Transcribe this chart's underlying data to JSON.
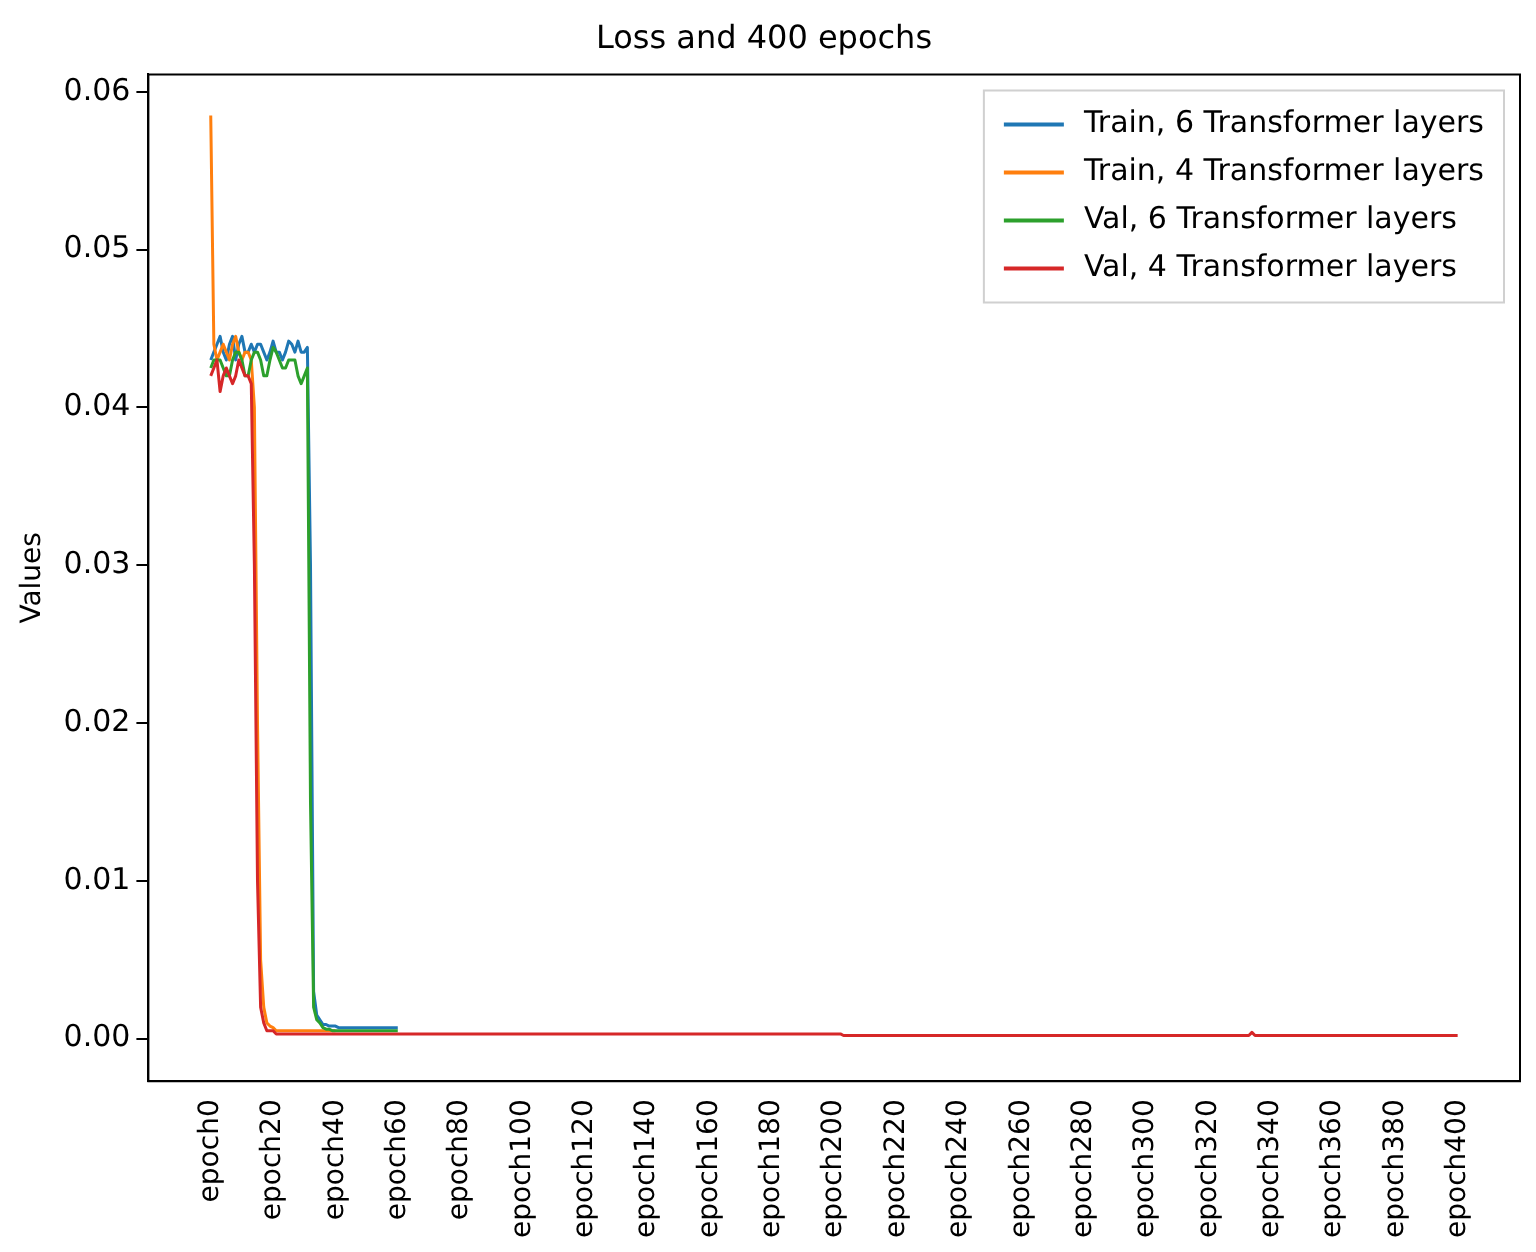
{
  "chart_data": {
    "type": "line",
    "title": "Loss and 400 epochs",
    "ylabel": "Values",
    "categories": [
      "epoch0",
      null,
      null,
      null,
      null,
      null,
      null,
      null,
      null,
      null,
      null,
      null,
      null,
      null,
      null,
      null,
      null,
      null,
      null,
      null,
      "epoch20",
      null,
      null,
      null,
      null,
      null,
      null,
      null,
      null,
      null,
      null,
      null,
      null,
      null,
      null,
      null,
      null,
      null,
      null,
      null,
      "epoch40",
      null,
      null,
      null,
      null,
      null,
      null,
      null,
      null,
      null,
      null,
      null,
      null,
      null,
      null,
      null,
      null,
      null,
      null,
      null,
      "epoch60",
      null,
      null,
      null,
      null,
      null,
      null,
      null,
      null,
      null,
      null,
      null,
      null,
      null,
      null,
      null,
      null,
      null,
      null,
      null,
      "epoch80",
      null,
      null,
      null,
      null,
      null,
      null,
      null,
      null,
      null,
      null,
      null,
      null,
      null,
      null,
      null,
      null,
      null,
      null,
      null,
      "epoch100",
      null,
      null,
      null,
      null,
      null,
      null,
      null,
      null,
      null,
      null,
      null,
      null,
      null,
      null,
      null,
      null,
      null,
      null,
      null,
      "epoch120",
      null,
      null,
      null,
      null,
      null,
      null,
      null,
      null,
      null,
      null,
      null,
      null,
      null,
      null,
      null,
      null,
      null,
      null,
      null,
      "epoch140",
      null,
      null,
      null,
      null,
      null,
      null,
      null,
      null,
      null,
      null,
      null,
      null,
      null,
      null,
      null,
      null,
      null,
      null,
      null,
      "epoch160",
      null,
      null,
      null,
      null,
      null,
      null,
      null,
      null,
      null,
      null,
      null,
      null,
      null,
      null,
      null,
      null,
      null,
      null,
      null,
      "epoch180",
      null,
      null,
      null,
      null,
      null,
      null,
      null,
      null,
      null,
      null,
      null,
      null,
      null,
      null,
      null,
      null,
      null,
      null,
      null,
      "epoch200",
      null,
      null,
      null,
      null,
      null,
      null,
      null,
      null,
      null,
      null,
      null,
      null,
      null,
      null,
      null,
      null,
      null,
      null,
      null,
      "epoch220",
      null,
      null,
      null,
      null,
      null,
      null,
      null,
      null,
      null,
      null,
      null,
      null,
      null,
      null,
      null,
      null,
      null,
      null,
      null,
      "epoch240",
      null,
      null,
      null,
      null,
      null,
      null,
      null,
      null,
      null,
      null,
      null,
      null,
      null,
      null,
      null,
      null,
      null,
      null,
      null,
      "epoch260",
      null,
      null,
      null,
      null,
      null,
      null,
      null,
      null,
      null,
      null,
      null,
      null,
      null,
      null,
      null,
      null,
      null,
      null,
      null,
      "epoch280",
      null,
      null,
      null,
      null,
      null,
      null,
      null,
      null,
      null,
      null,
      null,
      null,
      null,
      null,
      null,
      null,
      null,
      null,
      null,
      "epoch300",
      null,
      null,
      null,
      null,
      null,
      null,
      null,
      null,
      null,
      null,
      null,
      null,
      null,
      null,
      null,
      null,
      null,
      null,
      null,
      "epoch320",
      null,
      null,
      null,
      null,
      null,
      null,
      null,
      null,
      null,
      null,
      null,
      null,
      null,
      null,
      null,
      null,
      null,
      null,
      null,
      "epoch340",
      null,
      null,
      null,
      null,
      null,
      null,
      null,
      null,
      null,
      null,
      null,
      null,
      null,
      null,
      null,
      null,
      null,
      null,
      null,
      "epoch360",
      null,
      null,
      null,
      null,
      null,
      null,
      null,
      null,
      null,
      null,
      null,
      null,
      null,
      null,
      null,
      null,
      null,
      null,
      null,
      "epoch380",
      null,
      null,
      null,
      null,
      null,
      null,
      null,
      null,
      null,
      null,
      null,
      null,
      null,
      null,
      null,
      null,
      null,
      null,
      null,
      "epoch400"
    ],
    "ylim": [
      -0.0027,
      0.0611
    ],
    "yticks": [
      {
        "value": 0,
        "label": "0.00"
      },
      {
        "value": 0.01,
        "label": "0.01"
      },
      {
        "value": 0.02,
        "label": "0.02"
      },
      {
        "value": 0.03,
        "label": "0.03"
      },
      {
        "value": 0.04,
        "label": "0.04"
      },
      {
        "value": 0.05,
        "label": "0.05"
      },
      {
        "value": 0.06,
        "label": "0.06"
      }
    ],
    "grid": false,
    "legend": "top right",
    "marker": "none",
    "line_style": "solid",
    "series": [
      {
        "name": "Train, 6 Transformer layers",
        "color": "#1f77b4",
        "values": [
          0.043,
          0.0435,
          0.044,
          0.0445,
          0.0435,
          0.043,
          0.044,
          0.0445,
          0.043,
          0.044,
          0.0445,
          0.0435,
          0.0435,
          0.044,
          0.0435,
          0.044,
          0.044,
          0.0435,
          0.043,
          0.0435,
          0.0442,
          0.0435,
          0.0435,
          0.043,
          0.0435,
          0.0442,
          0.044,
          0.0435,
          0.0442,
          0.0435,
          0.0435,
          0.0438,
          0.03,
          0.003,
          0.0015,
          0.0012,
          0.0009,
          0.0009,
          0.0008,
          0.0008,
          0.0008,
          0.0007,
          0.0007,
          0.0007,
          0.0007,
          0.0007,
          0.0007,
          0.0007,
          0.0007,
          0.0007,
          0.0007,
          0.0007,
          0.0007,
          0.0007,
          0.0007,
          0.0007,
          0.0007,
          0.0007,
          0.0007,
          0.0007,
          0.0007,
          null,
          null,
          null,
          null,
          null,
          null,
          null,
          null,
          null,
          null,
          null,
          null,
          null,
          null,
          null,
          null,
          null,
          null,
          null,
          null,
          null,
          null,
          null,
          null,
          null,
          null,
          null,
          null,
          null,
          null,
          null,
          null,
          null,
          null,
          null,
          null,
          null,
          null,
          null,
          null,
          null,
          null,
          null,
          null,
          null,
          null,
          null,
          null,
          null,
          null,
          null,
          null,
          null,
          null,
          null,
          null,
          null,
          null,
          null,
          null,
          null,
          null,
          null,
          null,
          null,
          null,
          null,
          null,
          null,
          null,
          null,
          null,
          null,
          null,
          null,
          null,
          null,
          null,
          null,
          null,
          null,
          null,
          null,
          null,
          null,
          null,
          null,
          null,
          null,
          null,
          null,
          null,
          null,
          null,
          null,
          null,
          null,
          null,
          null,
          null,
          null,
          null,
          null,
          null,
          null,
          null,
          null,
          null,
          null,
          null,
          null,
          null,
          null,
          null,
          null,
          null,
          null,
          null,
          null,
          null,
          null,
          null,
          null,
          null,
          null,
          null,
          null,
          null,
          null,
          null,
          null,
          null,
          null,
          null,
          null,
          null,
          null,
          null,
          null,
          null,
          null,
          null,
          null,
          null,
          null,
          null,
          null,
          null,
          null,
          null,
          null,
          null,
          null,
          null,
          null,
          null,
          null,
          null,
          null,
          null,
          null,
          null,
          null,
          null,
          null,
          null,
          null,
          null,
          null,
          null,
          null,
          null,
          null,
          null,
          null,
          null,
          null,
          null,
          null,
          null,
          null,
          null,
          null,
          null,
          null,
          null,
          null,
          null,
          null,
          null,
          null,
          null,
          null,
          null,
          null,
          null,
          null,
          null,
          null,
          null,
          null,
          null,
          null,
          null,
          null,
          null,
          null,
          null,
          null,
          null,
          null,
          null,
          null,
          null,
          null,
          null,
          null,
          null,
          null,
          null,
          null,
          null,
          null,
          null,
          null,
          null,
          null,
          null,
          null,
          null,
          null,
          null,
          null,
          null,
          null,
          null,
          null,
          null,
          null,
          null,
          null,
          null,
          null,
          null,
          null,
          null,
          null,
          null,
          null,
          null,
          null,
          null,
          null,
          null,
          null,
          null,
          null,
          null,
          null,
          null,
          null,
          null,
          null,
          null,
          null,
          null,
          null,
          null,
          null,
          null,
          null,
          null,
          null,
          null,
          null,
          null,
          null,
          null,
          null,
          null,
          null,
          null,
          null,
          null,
          null,
          null,
          null,
          null,
          null,
          null,
          null,
          null,
          null,
          null,
          null,
          null,
          null,
          null,
          null,
          null,
          null,
          null,
          null,
          null,
          null,
          null,
          null,
          null,
          null,
          null,
          null,
          null,
          null,
          null,
          null,
          null,
          null,
          null,
          null,
          null,
          null,
          null,
          null,
          null,
          null,
          null,
          null,
          null,
          null,
          null,
          null,
          null,
          null,
          null,
          null,
          null,
          null,
          null,
          null,
          null
        ]
      },
      {
        "name": "Train, 4 Transformer layers",
        "color": "#ff7f0e",
        "values": [
          0.0585,
          0.044,
          0.043,
          0.0435,
          0.044,
          0.0435,
          0.043,
          0.044,
          0.0445,
          0.0435,
          0.043,
          0.0435,
          0.0435,
          0.043,
          0.04,
          0.02,
          0.005,
          0.002,
          0.001,
          0.0008,
          0.0007,
          0.0005,
          0.0005,
          0.0005,
          0.0005,
          0.0005,
          0.0005,
          0.0005,
          0.0005,
          0.0005,
          0.0005,
          0.0005,
          0.0005,
          0.0005,
          0.0005,
          0.0005,
          0.0005,
          0.0005,
          0.0005,
          0.0005,
          0.0005,
          null,
          null,
          null,
          null,
          null,
          null,
          null,
          null,
          null,
          null,
          null,
          null,
          null,
          null,
          null,
          null,
          null,
          null,
          null,
          null,
          null,
          null,
          null,
          null,
          null,
          null,
          null,
          null,
          null,
          null,
          null,
          null,
          null,
          null,
          null,
          null,
          null,
          null,
          null,
          null,
          null,
          null,
          null,
          null,
          null,
          null,
          null,
          null,
          null,
          null,
          null,
          null,
          null,
          null,
          null,
          null,
          null,
          null,
          null,
          null,
          null,
          null,
          null,
          null,
          null,
          null,
          null,
          null,
          null,
          null,
          null,
          null,
          null,
          null,
          null,
          null,
          null,
          null,
          null,
          null,
          null,
          null,
          null,
          null,
          null,
          null,
          null,
          null,
          null,
          null,
          null,
          null,
          null,
          null,
          null,
          null,
          null,
          null,
          null,
          null,
          null,
          null,
          null,
          null,
          null,
          null,
          null,
          null,
          null,
          null,
          null,
          null,
          null,
          null,
          null,
          null,
          null,
          null,
          null,
          null,
          null,
          null,
          null,
          null,
          null,
          null,
          null,
          null,
          null,
          null,
          null,
          null,
          null,
          null,
          null,
          null,
          null,
          null,
          null,
          null,
          null,
          null,
          null,
          null,
          null,
          null,
          null,
          null,
          null,
          null,
          null,
          null,
          null,
          null,
          null,
          null,
          null,
          null,
          null,
          null,
          null,
          null,
          null,
          null,
          null,
          null,
          null,
          null,
          null,
          null,
          null,
          null,
          null,
          null,
          null,
          null,
          null,
          null,
          null,
          null,
          null,
          null,
          null,
          null,
          null,
          null,
          null,
          null,
          null,
          null,
          null,
          null,
          null,
          null,
          null,
          null,
          null,
          null,
          null,
          null,
          null,
          null,
          null,
          null,
          null,
          null,
          null,
          null,
          null,
          null,
          null,
          null,
          null,
          null,
          null,
          null,
          null,
          null,
          null,
          null,
          null,
          null,
          null,
          null,
          null,
          null,
          null,
          null,
          null,
          null,
          null,
          null,
          null,
          null,
          null,
          null,
          null,
          null,
          null,
          null,
          null,
          null,
          null,
          null,
          null,
          null,
          null,
          null,
          null,
          null,
          null,
          null,
          null,
          null,
          null,
          null,
          null,
          null,
          null,
          null,
          null,
          null,
          null,
          null,
          null,
          null,
          null,
          null,
          null,
          null,
          null,
          null,
          null,
          null,
          null,
          null,
          null,
          null,
          null,
          null,
          null,
          null,
          null,
          null,
          null,
          null,
          null,
          null,
          null,
          null,
          null,
          null,
          null,
          null,
          null,
          null,
          null,
          null,
          null,
          null,
          null,
          null,
          null,
          null,
          null,
          null,
          null,
          null,
          null,
          null,
          null,
          null,
          null,
          null,
          null,
          null,
          null,
          null,
          null,
          null,
          null,
          null,
          null,
          null,
          null,
          null,
          null,
          null,
          null,
          null,
          null,
          null,
          null,
          null,
          null,
          null,
          null,
          null,
          null,
          null,
          null,
          null,
          null,
          null,
          null,
          null,
          null,
          null,
          null,
          null,
          null,
          null,
          null,
          null,
          null,
          null,
          null,
          null,
          null,
          null
        ]
      },
      {
        "name": "Val, 6 Transformer layers",
        "color": "#2ca02c",
        "values": [
          0.0425,
          0.043,
          0.043,
          0.043,
          0.0425,
          0.042,
          0.042,
          0.043,
          0.0435,
          0.0435,
          0.043,
          0.042,
          0.042,
          0.043,
          0.0435,
          0.0435,
          0.043,
          0.042,
          0.042,
          0.043,
          0.0438,
          0.0435,
          0.043,
          0.0425,
          0.0425,
          0.043,
          0.043,
          0.043,
          0.042,
          0.0415,
          0.042,
          0.0425,
          0.015,
          0.002,
          0.0012,
          0.001,
          0.0007,
          0.0006,
          0.0006,
          0.0005,
          0.0005,
          0.0005,
          0.0005,
          0.0005,
          0.0005,
          0.0005,
          0.0005,
          0.0005,
          0.0005,
          0.0005,
          0.0005,
          0.0005,
          0.0005,
          0.0005,
          0.0005,
          0.0005,
          0.0005,
          0.0005,
          0.0005,
          0.0005,
          0.0005,
          null,
          null,
          null,
          null,
          null,
          null,
          null,
          null,
          null,
          null,
          null,
          null,
          null,
          null,
          null,
          null,
          null,
          null,
          null,
          null,
          null,
          null,
          null,
          null,
          null,
          null,
          null,
          null,
          null,
          null,
          null,
          null,
          null,
          null,
          null,
          null,
          null,
          null,
          null,
          null,
          null,
          null,
          null,
          null,
          null,
          null,
          null,
          null,
          null,
          null,
          null,
          null,
          null,
          null,
          null,
          null,
          null,
          null,
          null,
          null,
          null,
          null,
          null,
          null,
          null,
          null,
          null,
          null,
          null,
          null,
          null,
          null,
          null,
          null,
          null,
          null,
          null,
          null,
          null,
          null,
          null,
          null,
          null,
          null,
          null,
          null,
          null,
          null,
          null,
          null,
          null,
          null,
          null,
          null,
          null,
          null,
          null,
          null,
          null,
          null,
          null,
          null,
          null,
          null,
          null,
          null,
          null,
          null,
          null,
          null,
          null,
          null,
          null,
          null,
          null,
          null,
          null,
          null,
          null,
          null,
          null,
          null,
          null,
          null,
          null,
          null,
          null,
          null,
          null,
          null,
          null,
          null,
          null,
          null,
          null,
          null,
          null,
          null,
          null,
          null,
          null,
          null,
          null,
          null,
          null,
          null,
          null,
          null,
          null,
          null,
          null,
          null,
          null,
          null,
          null,
          null,
          null,
          null,
          null,
          null,
          null,
          null,
          null,
          null,
          null,
          null,
          null,
          null,
          null,
          null,
          null,
          null,
          null,
          null,
          null,
          null,
          null,
          null,
          null,
          null,
          null,
          null,
          null,
          null,
          null,
          null,
          null,
          null,
          null,
          null,
          null,
          null,
          null,
          null,
          null,
          null,
          null,
          null,
          null,
          null,
          null,
          null,
          null,
          null,
          null,
          null,
          null,
          null,
          null,
          null,
          null,
          null,
          null,
          null,
          null,
          null,
          null,
          null,
          null,
          null,
          null,
          null,
          null,
          null,
          null,
          null,
          null,
          null,
          null,
          null,
          null,
          null,
          null,
          null,
          null,
          null,
          null,
          null,
          null,
          null,
          null,
          null,
          null,
          null,
          null,
          null,
          null,
          null,
          null,
          null,
          null,
          null,
          null,
          null,
          null,
          null,
          null,
          null,
          null,
          null,
          null,
          null,
          null,
          null,
          null,
          null,
          null,
          null,
          null,
          null,
          null,
          null,
          null,
          null,
          null,
          null,
          null,
          null,
          null,
          null,
          null,
          null,
          null,
          null,
          null,
          null,
          null,
          null,
          null,
          null,
          null,
          null,
          null,
          null,
          null,
          null,
          null,
          null,
          null,
          null,
          null,
          null,
          null,
          null,
          null,
          null,
          null,
          null,
          null,
          null,
          null,
          null,
          null,
          null,
          null,
          null,
          null,
          null,
          null,
          null,
          null,
          null,
          null,
          null,
          null,
          null,
          null,
          null,
          null,
          null,
          null,
          null,
          null,
          null,
          null,
          null,
          null,
          null,
          null,
          null
        ]
      },
      {
        "name": "Val, 4 Transformer layers",
        "color": "#d62728",
        "values": [
          0.042,
          0.0425,
          0.043,
          0.041,
          0.042,
          0.0425,
          0.042,
          0.0415,
          0.042,
          0.043,
          0.0425,
          0.042,
          0.042,
          0.0415,
          0.03,
          0.01,
          0.002,
          0.001,
          0.0005,
          0.0005,
          0.0005,
          0.0003,
          0.0003,
          0.0003,
          0.0003,
          0.0003,
          0.0003,
          0.0003,
          0.0003,
          0.0003,
          0.0003,
          0.0003,
          0.0003,
          0.0003,
          0.0003,
          0.0003,
          0.0003,
          0.0003,
          0.0003,
          0.0003,
          0.0003,
          0.0003,
          0.0003,
          0.0003,
          0.0003,
          0.0003,
          0.0003,
          0.0003,
          0.0003,
          0.0003,
          0.0003,
          0.0003,
          0.0003,
          0.0003,
          0.0003,
          0.0003,
          0.0003,
          0.0003,
          0.0003,
          0.0003,
          0.0003,
          0.0003,
          0.0003,
          0.0003,
          0.0003,
          0.0003,
          0.0003,
          0.0003,
          0.0003,
          0.0003,
          0.0003,
          0.0003,
          0.0003,
          0.0003,
          0.0003,
          0.0003,
          0.0003,
          0.0003,
          0.0003,
          0.0003,
          0.0003,
          0.0003,
          0.0003,
          0.0003,
          0.0003,
          0.0003,
          0.0003,
          0.0003,
          0.0003,
          0.0003,
          0.0003,
          0.0003,
          0.0003,
          0.0003,
          0.0003,
          0.0003,
          0.0003,
          0.0003,
          0.0003,
          0.0003,
          0.0003,
          0.0003,
          0.0003,
          0.0003,
          0.0003,
          0.0003,
          0.0003,
          0.0003,
          0.0003,
          0.0003,
          0.0003,
          0.0003,
          0.0003,
          0.0003,
          0.0003,
          0.0003,
          0.0003,
          0.0003,
          0.0003,
          0.0003,
          0.0003,
          0.0003,
          0.0003,
          0.0003,
          0.0003,
          0.0003,
          0.0003,
          0.0003,
          0.0003,
          0.0003,
          0.0003,
          0.0003,
          0.0003,
          0.0003,
          0.0003,
          0.0003,
          0.0003,
          0.0003,
          0.0003,
          0.0003,
          0.0003,
          0.0003,
          0.0003,
          0.0003,
          0.0003,
          0.0003,
          0.0003,
          0.0003,
          0.0003,
          0.0003,
          0.0003,
          0.0003,
          0.0003,
          0.0003,
          0.0003,
          0.0003,
          0.0003,
          0.0003,
          0.0003,
          0.0003,
          0.0003,
          0.0003,
          0.0003,
          0.0003,
          0.0003,
          0.0003,
          0.0003,
          0.0003,
          0.0003,
          0.0003,
          0.0003,
          0.0003,
          0.0003,
          0.0003,
          0.0003,
          0.0003,
          0.0003,
          0.0003,
          0.0003,
          0.0003,
          0.0003,
          0.0003,
          0.0003,
          0.0003,
          0.0003,
          0.0003,
          0.0003,
          0.0003,
          0.0003,
          0.0003,
          0.0003,
          0.0003,
          0.0003,
          0.0003,
          0.0003,
          0.0003,
          0.0003,
          0.0003,
          0.0003,
          0.0003,
          0.0003,
          0.0003,
          0.0003,
          0.0002,
          0.0002,
          0.0002,
          0.0002,
          0.0002,
          0.0002,
          0.0002,
          0.0002,
          0.0002,
          0.0002,
          0.0002,
          0.0002,
          0.0002,
          0.0002,
          0.0002,
          0.0002,
          0.0002,
          0.0002,
          0.0002,
          0.0002,
          0.0002,
          0.0002,
          0.0002,
          0.0002,
          0.0002,
          0.0002,
          0.0002,
          0.0002,
          0.0002,
          0.0002,
          0.0002,
          0.0002,
          0.0002,
          0.0002,
          0.0002,
          0.0002,
          0.0002,
          0.0002,
          0.0002,
          0.0002,
          0.0002,
          0.0002,
          0.0002,
          0.0002,
          0.0002,
          0.0002,
          0.0002,
          0.0002,
          0.0002,
          0.0002,
          0.0002,
          0.0002,
          0.0002,
          0.0002,
          0.0002,
          0.0002,
          0.0002,
          0.0002,
          0.0002,
          0.0002,
          0.0002,
          0.0002,
          0.0002,
          0.0002,
          0.0002,
          0.0002,
          0.0002,
          0.0002,
          0.0002,
          0.0002,
          0.0002,
          0.0002,
          0.0002,
          0.0002,
          0.0002,
          0.0002,
          0.0002,
          0.0002,
          0.0002,
          0.0002,
          0.0002,
          0.0002,
          0.0002,
          0.0002,
          0.0002,
          0.0002,
          0.0002,
          0.0002,
          0.0002,
          0.0002,
          0.0002,
          0.0002,
          0.0002,
          0.0002,
          0.0002,
          0.0002,
          0.0002,
          0.0002,
          0.0002,
          0.0002,
          0.0002,
          0.0002,
          0.0002,
          0.0002,
          0.0002,
          0.0002,
          0.0002,
          0.0002,
          0.0002,
          0.0002,
          0.0002,
          0.0002,
          0.0002,
          0.0002,
          0.0002,
          0.0002,
          0.0002,
          0.0002,
          0.0002,
          0.0002,
          0.0002,
          0.0002,
          0.0002,
          0.0002,
          0.0002,
          0.0002,
          0.0002,
          0.0002,
          0.0002,
          0.0002,
          0.0002,
          0.0004,
          0.0002,
          0.0002,
          0.0002,
          0.0002,
          0.0002,
          0.0002,
          0.0002,
          0.0002,
          0.0002,
          0.0002,
          0.0002,
          0.0002,
          0.0002,
          0.0002,
          0.0002,
          0.0002,
          0.0002,
          0.0002,
          0.0002,
          0.0002,
          0.0002,
          0.0002,
          0.0002,
          0.0002,
          0.0002,
          0.0002,
          0.0002,
          0.0002,
          0.0002,
          0.0002,
          0.0002,
          0.0002,
          0.0002,
          0.0002,
          0.0002,
          0.0002,
          0.0002,
          0.0002,
          0.0002,
          0.0002,
          0.0002,
          0.0002,
          0.0002,
          0.0002,
          0.0002,
          0.0002,
          0.0002,
          0.0002,
          0.0002,
          0.0002,
          0.0002,
          0.0002,
          0.0002,
          0.0002,
          0.0002,
          0.0002,
          0.0002,
          0.0002,
          0.0002,
          0.0002,
          0.0002,
          0.0002,
          0.0002,
          0.0002,
          0.0002,
          0.0002
        ]
      }
    ]
  }
}
